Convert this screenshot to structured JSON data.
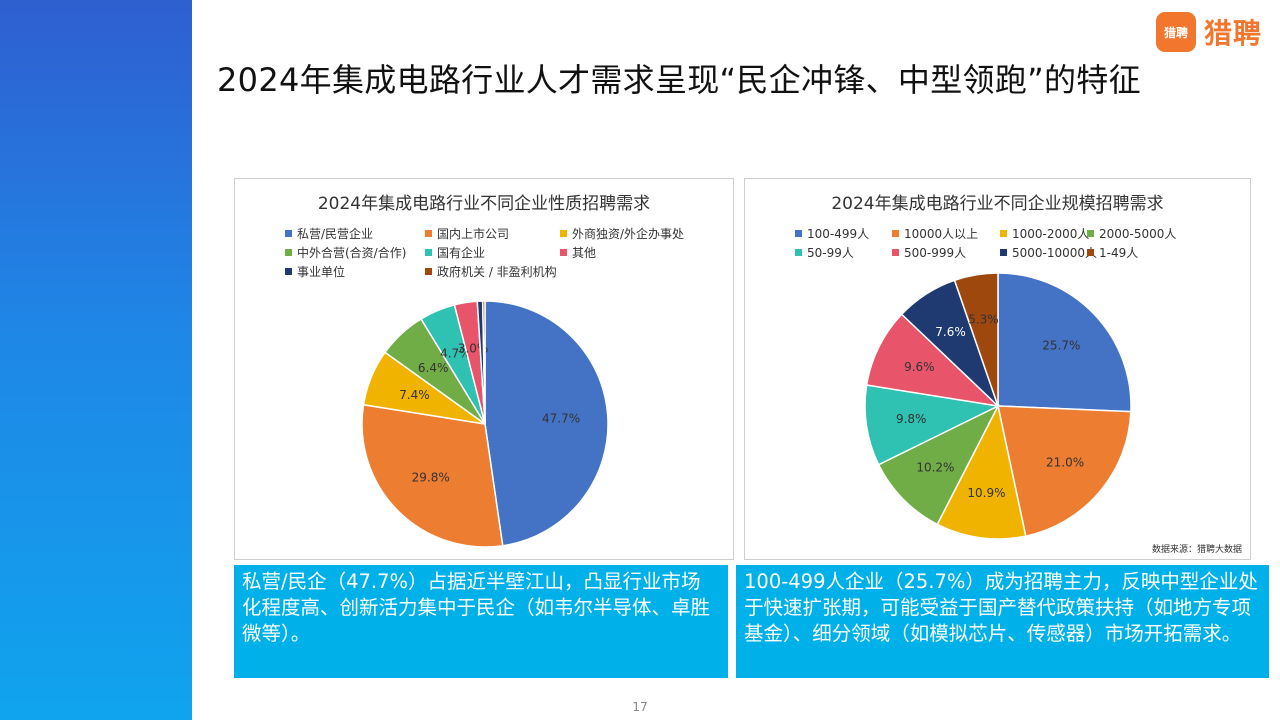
{
  "slide": {
    "title": "2024年集成电路行业人才需求呈现“民企冲锋、中型领跑”的特征",
    "logo_badge": "猎聘",
    "logo_text": "猎聘",
    "page_number": "17",
    "source": "数据来源：猎聘大数据",
    "caption_left": "私营/民企（47.7%）占据近半壁江山，凸显行业市场化程度高、创新活力集中于民企（如韦尔半导体、卓胜微等）。",
    "caption_right": "100-499人企业（25.7%）成为招聘主力，反映中型企业处于快速扩张期，可能受益于国产替代政策扶持（如地方专项基金）、细分领域（如模拟芯片、传感器）市场开拓需求。"
  },
  "chart_data": [
    {
      "type": "pie",
      "title": "2024年集成电路行业不同企业性质招聘需求",
      "categories": [
        "私营/民营企业",
        "国内上市公司",
        "外商独资/外企办事处",
        "中外合营(合资/合作)",
        "国有企业",
        "其他",
        "事业单位",
        "政府机关 / 非盈利机构"
      ],
      "values": [
        47.7,
        29.8,
        7.4,
        6.4,
        4.7,
        3.0,
        0.7,
        0.3
      ],
      "value_labels": [
        "47.7%",
        "29.8%",
        "7.4%",
        "6.4%",
        "4.7%",
        "3.0%",
        "",
        ""
      ],
      "colors": [
        "#4472c4",
        "#ed7d31",
        "#f0b400",
        "#70ad47",
        "#2fc1b1",
        "#e8546a",
        "#1f3a70",
        "#9e480e"
      ],
      "legend_position": "top"
    },
    {
      "type": "pie",
      "title": "2024年集成电路行业不同企业规模招聘需求",
      "categories": [
        "100-499人",
        "10000人以上",
        "1000-2000人",
        "2000-5000人",
        "50-99人",
        "500-999人",
        "5000-10000人",
        "1-49人"
      ],
      "values": [
        25.7,
        21.0,
        10.9,
        10.2,
        9.8,
        9.6,
        7.6,
        5.3
      ],
      "value_labels": [
        "25.7%",
        "21.0%",
        "10.9%",
        "10.2%",
        "9.8%",
        "9.6%",
        "7.6%",
        "5.3%"
      ],
      "colors": [
        "#4472c4",
        "#ed7d31",
        "#f0b400",
        "#70ad47",
        "#2fc1b1",
        "#e8546a",
        "#1f3a70",
        "#9e480e"
      ],
      "legend_position": "top"
    }
  ]
}
